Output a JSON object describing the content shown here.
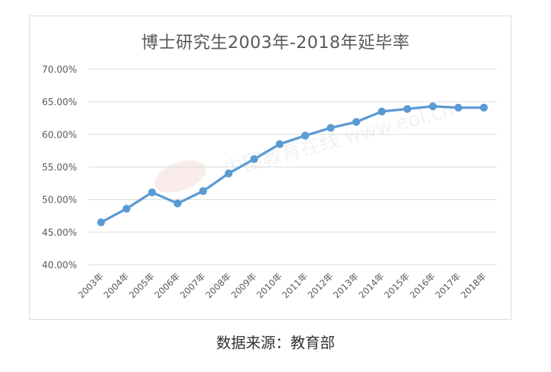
{
  "chart_data": {
    "type": "line",
    "title": "博士研究生2003年-2018年延毕率",
    "xlabel": "",
    "ylabel": "",
    "categories": [
      "2003年",
      "2004年",
      "2005年",
      "2006年",
      "2007年",
      "2008年",
      "2009年",
      "2010年",
      "2011年",
      "2012年",
      "2013年",
      "2014年",
      "2015年",
      "2016年",
      "2017年",
      "2018年"
    ],
    "series": [
      {
        "name": "延毕率",
        "values": [
          46.5,
          48.6,
          51.1,
          49.4,
          51.3,
          54.0,
          56.2,
          58.5,
          59.8,
          61.0,
          61.9,
          63.5,
          63.9,
          64.3,
          64.1,
          64.1
        ],
        "color": "#5b9bd5"
      }
    ],
    "ylim": [
      40,
      70
    ],
    "yticks": [
      "70.00%",
      "65.00%",
      "60.00%",
      "55.00%",
      "50.00%",
      "45.00%",
      "40.00%"
    ],
    "ytick_values": [
      70,
      65,
      60,
      55,
      50,
      45,
      40
    ],
    "grid": true,
    "legend": "none",
    "watermark": "中国教育在线 www.eol.cn"
  },
  "caption": "数据来源：教育部",
  "colors": {
    "line": "#5b9bd5",
    "grid": "#d9d9d9",
    "text": "#595959",
    "frame": "#d9d9d9"
  }
}
